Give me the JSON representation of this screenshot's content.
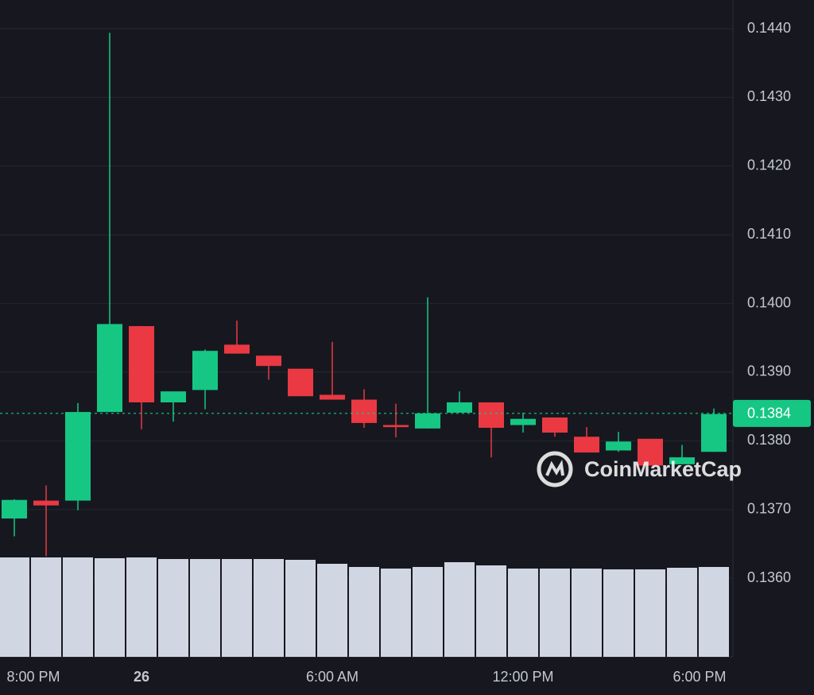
{
  "chart_data": {
    "type": "candlestick",
    "categories": [
      "8:00 PM",
      null,
      null,
      null,
      "26",
      null,
      null,
      null,
      null,
      null,
      "6:00 AM",
      null,
      null,
      null,
      null,
      null,
      "12:00 PM",
      null,
      null,
      null,
      null,
      null,
      "6:00 PM"
    ],
    "open": [
      0.13687,
      0.13713,
      0.13713,
      0.13842,
      0.13967,
      0.13856,
      0.13874,
      0.1394,
      0.13924,
      0.13905,
      0.13867,
      0.1386,
      0.13823,
      0.13818,
      0.13841,
      0.13856,
      0.13823,
      0.13834,
      0.13806,
      0.13786,
      0.13803,
      0.13766,
      0.13784
    ],
    "high": [
      0.13715,
      0.13735,
      0.13855,
      0.14394,
      0.13967,
      0.13872,
      0.13933,
      0.13975,
      0.13924,
      0.13905,
      0.13944,
      0.13875,
      0.13854,
      0.14009,
      0.13872,
      0.13856,
      0.13841,
      0.13834,
      0.1382,
      0.13813,
      0.13803,
      0.13794,
      0.13847
    ],
    "low": [
      0.13661,
      0.13632,
      0.13699,
      0.13842,
      0.13817,
      0.13828,
      0.13846,
      0.13927,
      0.13889,
      0.13865,
      0.1386,
      0.13819,
      0.13805,
      0.13818,
      0.13841,
      0.13776,
      0.13812,
      0.13806,
      0.13783,
      0.13784,
      0.13764,
      0.13766,
      0.13784
    ],
    "close": [
      0.13714,
      0.13706,
      0.13842,
      0.1397,
      0.13856,
      0.13872,
      0.13931,
      0.13927,
      0.13909,
      0.13865,
      0.1386,
      0.13826,
      0.1382,
      0.1384,
      0.13856,
      0.13819,
      0.13832,
      0.13812,
      0.13783,
      0.13799,
      0.13764,
      0.13776,
      0.13839
    ],
    "volume": {
      "values": [
        125,
        125,
        125,
        124,
        125,
        123,
        123,
        123,
        123,
        122,
        117,
        113,
        111,
        113,
        119,
        115,
        111,
        111,
        111,
        110,
        110,
        112,
        113
      ],
      "ylim": [
        0,
        130
      ],
      "color": "#d1d6e3"
    },
    "up_color": "#16c784",
    "down_color": "#ea3943",
    "ylim": [
      0.134856,
      0.144417
    ],
    "yticks": [
      {
        "value": 0.136,
        "label": "0.1360"
      },
      {
        "value": 0.137,
        "label": "0.1370"
      },
      {
        "value": 0.138,
        "label": "0.1380"
      },
      {
        "value": 0.139,
        "label": "0.1390"
      },
      {
        "value": 0.14,
        "label": "0.1400"
      },
      {
        "value": 0.141,
        "label": "0.1410"
      },
      {
        "value": 0.142,
        "label": "0.1420"
      },
      {
        "value": 0.143,
        "label": "0.1430"
      },
      {
        "value": 0.144,
        "label": "0.1440"
      }
    ],
    "current_price": {
      "value": 0.1384,
      "label": "0.1384"
    },
    "grid": true,
    "watermark": "CoinMarketCap"
  }
}
